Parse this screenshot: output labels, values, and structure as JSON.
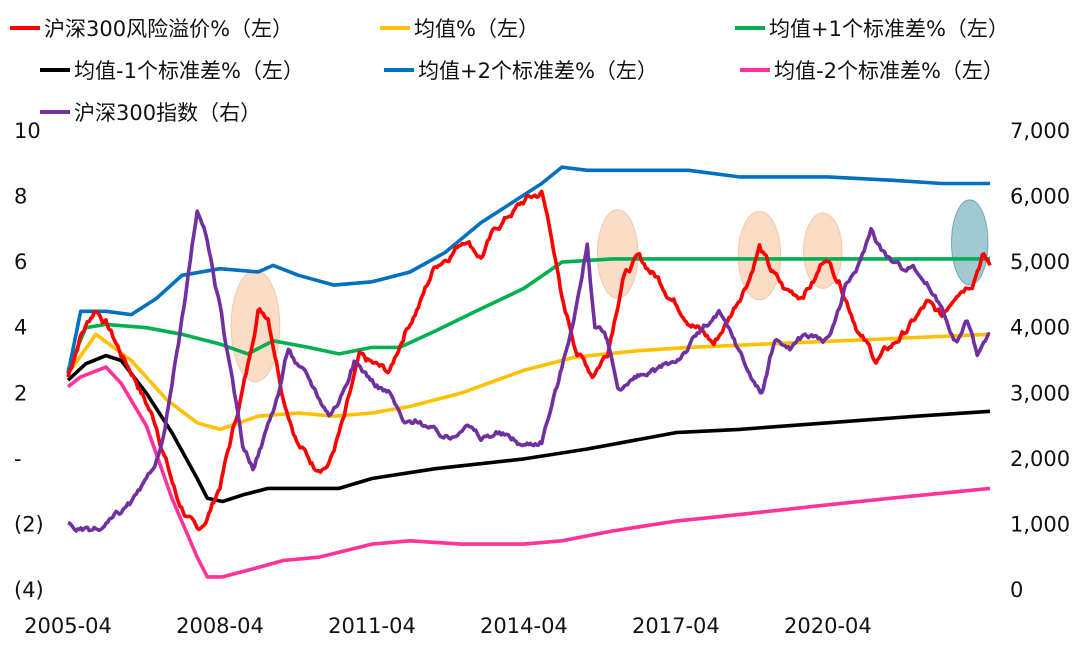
{
  "chart_data": {
    "type": "line",
    "legend": [
      {
        "name": "沪深300风险溢价%（左）",
        "color": "#ff0000"
      },
      {
        "name": "均值%（左）",
        "color": "#ffc000"
      },
      {
        "name": "均值+1个标准差%（左）",
        "color": "#00b050"
      },
      {
        "name": "均值-1个标准差%（左）",
        "color": "#000000"
      },
      {
        "name": "均值+2个标准差%（左）",
        "color": "#0070c0"
      },
      {
        "name": "均值-2个标准差%（左）",
        "color": "#ff3399"
      },
      {
        "name": "沪深300指数（右）",
        "color": "#7030a0"
      }
    ],
    "x_ticks": [
      "2005-04",
      "2008-04",
      "2011-04",
      "2014-04",
      "2017-04",
      "2020-04"
    ],
    "x_tick_years": [
      2005.25,
      2008.25,
      2011.25,
      2014.25,
      2017.25,
      2020.25
    ],
    "x_range": [
      2005.25,
      2023.45
    ],
    "left_axis": {
      "range": [
        -4,
        10
      ],
      "tick_values": [
        10,
        8,
        6,
        4,
        2,
        0,
        -2,
        -4
      ],
      "tick_labels": [
        "10",
        "8",
        "6",
        "4",
        "2",
        "-",
        "(2)",
        "(4)"
      ]
    },
    "right_axis": {
      "range": [
        0,
        7000
      ],
      "tick_values": [
        7000,
        6000,
        5000,
        4000,
        3000,
        2000,
        1000,
        0
      ],
      "tick_labels": [
        "7,000",
        "6,000",
        "5,000",
        "4,000",
        "3,000",
        "2,000",
        "1,000",
        "0"
      ]
    },
    "series": [
      {
        "name": "沪深300风险溢价%（左）",
        "axis": "left",
        "color": "#ff0000",
        "noise": 0.22,
        "points": [
          [
            2005.25,
            2.5
          ],
          [
            2005.5,
            3.8
          ],
          [
            2005.8,
            4.6
          ],
          [
            2006.0,
            4.2
          ],
          [
            2006.3,
            3.2
          ],
          [
            2006.6,
            2.4
          ],
          [
            2007.0,
            1.0
          ],
          [
            2007.4,
            -1.2
          ],
          [
            2007.8,
            -2.3
          ],
          [
            2008.0,
            -1.8
          ],
          [
            2008.25,
            -0.8
          ],
          [
            2008.5,
            0.8
          ],
          [
            2008.8,
            2.8
          ],
          [
            2009.0,
            4.6
          ],
          [
            2009.2,
            4.4
          ],
          [
            2009.5,
            2.0
          ],
          [
            2009.8,
            0.5
          ],
          [
            2010.1,
            -0.2
          ],
          [
            2010.4,
            -0.1
          ],
          [
            2010.7,
            1.2
          ],
          [
            2011.0,
            3.0
          ],
          [
            2011.3,
            2.8
          ],
          [
            2011.6,
            2.6
          ],
          [
            2011.9,
            3.9
          ],
          [
            2012.2,
            4.8
          ],
          [
            2012.5,
            5.9
          ],
          [
            2012.8,
            6.3
          ],
          [
            2013.1,
            6.8
          ],
          [
            2013.4,
            6.2
          ],
          [
            2013.7,
            7.0
          ],
          [
            2014.0,
            7.5
          ],
          [
            2014.3,
            7.9
          ],
          [
            2014.6,
            8.1
          ],
          [
            2014.8,
            6.8
          ],
          [
            2015.0,
            4.8
          ],
          [
            2015.3,
            3.3
          ],
          [
            2015.6,
            2.6
          ],
          [
            2015.9,
            3.3
          ],
          [
            2016.2,
            5.6
          ],
          [
            2016.5,
            6.1
          ],
          [
            2016.9,
            5.5
          ],
          [
            2017.3,
            4.7
          ],
          [
            2017.7,
            4.0
          ],
          [
            2018.0,
            3.5
          ],
          [
            2018.3,
            4.3
          ],
          [
            2018.7,
            5.6
          ],
          [
            2018.9,
            6.5
          ],
          [
            2019.1,
            5.8
          ],
          [
            2019.4,
            5.1
          ],
          [
            2019.7,
            5.0
          ],
          [
            2020.0,
            5.5
          ],
          [
            2020.2,
            6.2
          ],
          [
            2020.5,
            5.4
          ],
          [
            2020.9,
            3.8
          ],
          [
            2021.2,
            3.0
          ],
          [
            2021.5,
            3.4
          ],
          [
            2021.9,
            4.1
          ],
          [
            2022.2,
            4.7
          ],
          [
            2022.5,
            4.3
          ],
          [
            2022.8,
            5.2
          ],
          [
            2023.1,
            5.5
          ],
          [
            2023.3,
            6.3
          ],
          [
            2023.45,
            5.9
          ]
        ]
      },
      {
        "name": "均值%（左）",
        "axis": "left",
        "color": "#ffc000",
        "noise": 0,
        "points": [
          [
            2005.25,
            2.6
          ],
          [
            2005.8,
            3.8
          ],
          [
            2006.5,
            3.0
          ],
          [
            2007.2,
            1.8
          ],
          [
            2007.8,
            1.1
          ],
          [
            2008.25,
            0.9
          ],
          [
            2009.0,
            1.3
          ],
          [
            2009.8,
            1.4
          ],
          [
            2010.5,
            1.3
          ],
          [
            2011.25,
            1.4
          ],
          [
            2012.0,
            1.6
          ],
          [
            2013.0,
            2.0
          ],
          [
            2014.25,
            2.7
          ],
          [
            2015.25,
            3.1
          ],
          [
            2016.5,
            3.3
          ],
          [
            2017.5,
            3.4
          ],
          [
            2019.0,
            3.5
          ],
          [
            2020.5,
            3.6
          ],
          [
            2022.0,
            3.7
          ],
          [
            2023.45,
            3.8
          ]
        ]
      },
      {
        "name": "均值+1个标准差%（左）",
        "axis": "left",
        "color": "#00b050",
        "noise": 0,
        "points": [
          [
            2005.25,
            2.7
          ],
          [
            2005.6,
            4.0
          ],
          [
            2006.0,
            4.1
          ],
          [
            2006.8,
            4.0
          ],
          [
            2007.5,
            3.8
          ],
          [
            2008.25,
            3.5
          ],
          [
            2008.8,
            3.2
          ],
          [
            2009.3,
            3.6
          ],
          [
            2010.0,
            3.4
          ],
          [
            2010.6,
            3.2
          ],
          [
            2011.25,
            3.4
          ],
          [
            2011.8,
            3.4
          ],
          [
            2012.5,
            3.9
          ],
          [
            2013.3,
            4.5
          ],
          [
            2014.25,
            5.2
          ],
          [
            2015.0,
            6.0
          ],
          [
            2016.0,
            6.1
          ],
          [
            2017.5,
            6.1
          ],
          [
            2019.0,
            6.1
          ],
          [
            2020.25,
            6.1
          ],
          [
            2021.5,
            6.1
          ],
          [
            2023.45,
            6.1
          ]
        ]
      },
      {
        "name": "均值-1个标准差%（左）",
        "axis": "left",
        "color": "#000000",
        "noise": 0,
        "points": [
          [
            2005.25,
            2.4
          ],
          [
            2005.6,
            2.9
          ],
          [
            2006.0,
            3.15
          ],
          [
            2006.3,
            3.0
          ],
          [
            2006.8,
            2.0
          ],
          [
            2007.3,
            0.8
          ],
          [
            2007.8,
            -0.6
          ],
          [
            2008.0,
            -1.2
          ],
          [
            2008.3,
            -1.3
          ],
          [
            2008.7,
            -1.1
          ],
          [
            2009.2,
            -0.9
          ],
          [
            2010.0,
            -0.9
          ],
          [
            2010.6,
            -0.9
          ],
          [
            2011.25,
            -0.6
          ],
          [
            2012.5,
            -0.3
          ],
          [
            2014.25,
            0.0
          ],
          [
            2015.5,
            0.3
          ],
          [
            2017.25,
            0.8
          ],
          [
            2018.5,
            0.9
          ],
          [
            2020.25,
            1.1
          ],
          [
            2022.0,
            1.3
          ],
          [
            2023.45,
            1.45
          ]
        ]
      },
      {
        "name": "均值+2个标准差%（左）",
        "axis": "left",
        "color": "#0070c0",
        "noise": 0,
        "points": [
          [
            2005.25,
            2.6
          ],
          [
            2005.5,
            4.5
          ],
          [
            2006.0,
            4.5
          ],
          [
            2006.5,
            4.4
          ],
          [
            2007.0,
            4.9
          ],
          [
            2007.5,
            5.6
          ],
          [
            2008.25,
            5.8
          ],
          [
            2009.0,
            5.7
          ],
          [
            2009.3,
            5.9
          ],
          [
            2009.8,
            5.6
          ],
          [
            2010.5,
            5.3
          ],
          [
            2011.25,
            5.4
          ],
          [
            2012.0,
            5.7
          ],
          [
            2012.7,
            6.3
          ],
          [
            2013.4,
            7.2
          ],
          [
            2014.0,
            7.8
          ],
          [
            2014.6,
            8.4
          ],
          [
            2015.0,
            8.9
          ],
          [
            2015.5,
            8.8
          ],
          [
            2016.5,
            8.8
          ],
          [
            2017.5,
            8.8
          ],
          [
            2018.5,
            8.6
          ],
          [
            2019.5,
            8.6
          ],
          [
            2020.25,
            8.6
          ],
          [
            2021.5,
            8.5
          ],
          [
            2022.5,
            8.4
          ],
          [
            2023.45,
            8.4
          ]
        ]
      },
      {
        "name": "均值-2个标准差%（左）",
        "axis": "left",
        "color": "#ff3399",
        "noise": 0,
        "points": [
          [
            2005.25,
            2.2
          ],
          [
            2005.5,
            2.5
          ],
          [
            2006.0,
            2.8
          ],
          [
            2006.3,
            2.3
          ],
          [
            2006.8,
            1.0
          ],
          [
            2007.3,
            -1.2
          ],
          [
            2007.8,
            -3.0
          ],
          [
            2008.0,
            -3.6
          ],
          [
            2008.3,
            -3.6
          ],
          [
            2008.8,
            -3.4
          ],
          [
            2009.5,
            -3.1
          ],
          [
            2010.2,
            -3.0
          ],
          [
            2011.25,
            -2.6
          ],
          [
            2012.0,
            -2.5
          ],
          [
            2013.0,
            -2.6
          ],
          [
            2014.25,
            -2.6
          ],
          [
            2015.0,
            -2.5
          ],
          [
            2016.0,
            -2.2
          ],
          [
            2017.25,
            -1.9
          ],
          [
            2018.5,
            -1.7
          ],
          [
            2020.25,
            -1.4
          ],
          [
            2021.5,
            -1.2
          ],
          [
            2023.45,
            -0.9
          ]
        ]
      },
      {
        "name": "沪深300指数（右）",
        "axis": "right",
        "color": "#7030a0",
        "noise": 90,
        "points": [
          [
            2005.25,
            1000
          ],
          [
            2005.6,
            880
          ],
          [
            2005.9,
            900
          ],
          [
            2006.2,
            1100
          ],
          [
            2006.5,
            1300
          ],
          [
            2006.8,
            1600
          ],
          [
            2007.1,
            2200
          ],
          [
            2007.4,
            3600
          ],
          [
            2007.6,
            4600
          ],
          [
            2007.8,
            5800
          ],
          [
            2008.0,
            5300
          ],
          [
            2008.25,
            4300
          ],
          [
            2008.5,
            3100
          ],
          [
            2008.7,
            2200
          ],
          [
            2008.9,
            1900
          ],
          [
            2009.1,
            2300
          ],
          [
            2009.4,
            3000
          ],
          [
            2009.6,
            3700
          ],
          [
            2009.8,
            3400
          ],
          [
            2010.0,
            3200
          ],
          [
            2010.4,
            2700
          ],
          [
            2010.6,
            2900
          ],
          [
            2010.9,
            3500
          ],
          [
            2011.25,
            3200
          ],
          [
            2011.6,
            3000
          ],
          [
            2011.9,
            2500
          ],
          [
            2012.2,
            2600
          ],
          [
            2012.5,
            2400
          ],
          [
            2012.8,
            2300
          ],
          [
            2013.1,
            2600
          ],
          [
            2013.4,
            2300
          ],
          [
            2013.7,
            2400
          ],
          [
            2014.0,
            2300
          ],
          [
            2014.25,
            2200
          ],
          [
            2014.6,
            2300
          ],
          [
            2014.9,
            3100
          ],
          [
            2015.1,
            3700
          ],
          [
            2015.4,
            4800
          ],
          [
            2015.5,
            5300
          ],
          [
            2015.65,
            4000
          ],
          [
            2015.9,
            3800
          ],
          [
            2016.1,
            3100
          ],
          [
            2016.4,
            3200
          ],
          [
            2016.8,
            3300
          ],
          [
            2017.25,
            3500
          ],
          [
            2017.8,
            4000
          ],
          [
            2018.1,
            4200
          ],
          [
            2018.4,
            3800
          ],
          [
            2018.7,
            3300
          ],
          [
            2018.95,
            3000
          ],
          [
            2019.2,
            3800
          ],
          [
            2019.5,
            3700
          ],
          [
            2019.8,
            3900
          ],
          [
            2020.25,
            3800
          ],
          [
            2020.6,
            4600
          ],
          [
            2020.9,
            5000
          ],
          [
            2021.1,
            5500
          ],
          [
            2021.4,
            5100
          ],
          [
            2021.7,
            4900
          ],
          [
            2021.9,
            5000
          ],
          [
            2022.2,
            4700
          ],
          [
            2022.5,
            4300
          ],
          [
            2022.8,
            3800
          ],
          [
            2023.0,
            4100
          ],
          [
            2023.2,
            3600
          ],
          [
            2023.45,
            3900
          ]
        ]
      }
    ],
    "highlights": [
      {
        "x": 2008.95,
        "y": 4.05,
        "rx_years": 0.48,
        "ry": 1.7,
        "color": "#f4b183"
      },
      {
        "x": 2016.1,
        "y": 6.25,
        "rx_years": 0.4,
        "ry": 1.35,
        "color": "#f4b183"
      },
      {
        "x": 2018.9,
        "y": 6.2,
        "rx_years": 0.42,
        "ry": 1.35,
        "color": "#f4b183"
      },
      {
        "x": 2020.15,
        "y": 6.35,
        "rx_years": 0.38,
        "ry": 1.15,
        "color": "#f4b183"
      },
      {
        "x": 2023.05,
        "y": 6.6,
        "rx_years": 0.36,
        "ry": 1.3,
        "color": "#31859c"
      }
    ]
  }
}
